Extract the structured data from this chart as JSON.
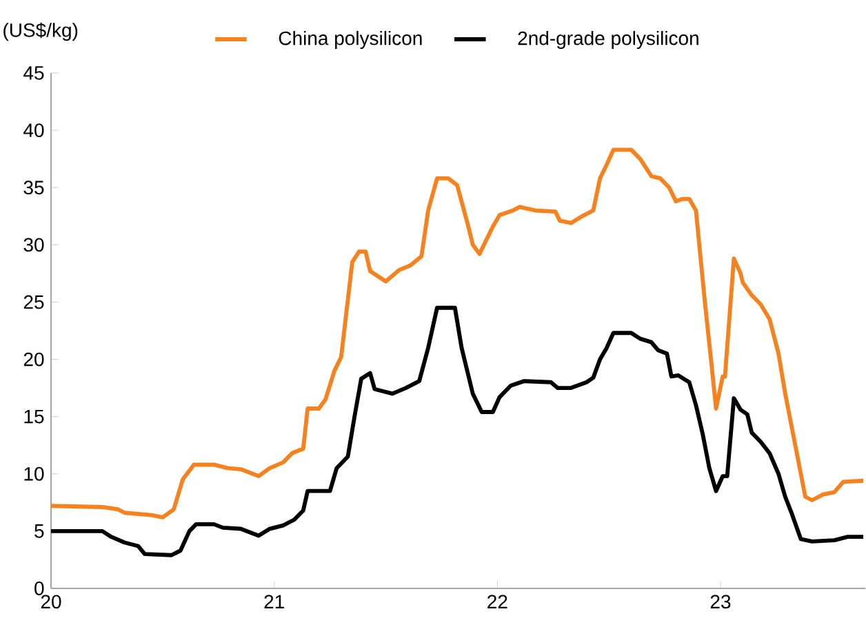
{
  "chart_data": {
    "type": "line",
    "ylabel": "(US$/kg)",
    "legend": "top",
    "xlim": [
      20,
      23.65
    ],
    "xticks": [
      20,
      21,
      22,
      23
    ],
    "ylim": [
      0,
      45
    ],
    "yticks": [
      0,
      5,
      10,
      15,
      20,
      25,
      30,
      35,
      40,
      45
    ],
    "series": [
      {
        "name": "China polysilicon",
        "color": "#f5821f",
        "x": [
          20.0,
          20.23,
          20.3,
          20.33,
          20.45,
          20.5,
          20.55,
          20.59,
          20.64,
          20.73,
          20.79,
          20.85,
          20.93,
          20.98,
          21.04,
          21.08,
          21.13,
          21.15,
          21.2,
          21.23,
          21.27,
          21.3,
          21.35,
          21.38,
          21.41,
          21.43,
          21.5,
          21.56,
          21.61,
          21.66,
          21.69,
          21.73,
          21.78,
          21.82,
          21.87,
          21.89,
          21.92,
          21.98,
          22.01,
          22.07,
          22.1,
          22.17,
          22.26,
          22.28,
          22.33,
          22.38,
          22.43,
          22.46,
          22.49,
          22.52,
          22.6,
          22.64,
          22.69,
          22.73,
          22.77,
          22.8,
          22.83,
          22.86,
          22.89,
          22.93,
          22.96,
          22.98,
          23.01,
          23.02,
          23.06,
          23.09,
          23.1,
          23.14,
          23.18,
          23.22,
          23.26,
          23.29,
          23.34,
          23.38,
          23.41,
          23.46,
          23.51,
          23.55,
          23.64
        ],
        "values": [
          7.2,
          7.1,
          6.9,
          6.6,
          6.4,
          6.2,
          6.9,
          9.5,
          10.8,
          10.8,
          10.5,
          10.4,
          9.8,
          10.5,
          11.0,
          11.8,
          12.2,
          15.7,
          15.7,
          16.5,
          19.0,
          20.2,
          28.5,
          29.4,
          29.4,
          27.7,
          26.8,
          27.8,
          28.2,
          29.0,
          33.0,
          35.8,
          35.8,
          35.2,
          31.6,
          30.0,
          29.2,
          31.6,
          32.6,
          33.0,
          33.3,
          33.0,
          32.9,
          32.1,
          31.9,
          32.5,
          33.0,
          35.8,
          37.0,
          38.3,
          38.3,
          37.5,
          36.0,
          35.8,
          35.0,
          33.8,
          34.0,
          34.0,
          33.0,
          25.0,
          19.5,
          15.7,
          18.5,
          18.5,
          28.8,
          27.5,
          26.7,
          25.6,
          24.8,
          23.5,
          20.5,
          17.0,
          12.0,
          8.0,
          7.7,
          8.2,
          8.4,
          9.3,
          9.4
        ]
      },
      {
        "name": "2nd-grade polysilicon",
        "color": "#000000",
        "x": [
          20.0,
          20.23,
          20.27,
          20.33,
          20.39,
          20.42,
          20.54,
          20.58,
          20.62,
          20.65,
          20.73,
          20.77,
          20.85,
          20.93,
          20.98,
          21.04,
          21.09,
          21.13,
          21.15,
          21.25,
          21.28,
          21.33,
          21.36,
          21.39,
          21.43,
          21.45,
          21.53,
          21.59,
          21.65,
          21.69,
          21.73,
          21.81,
          21.84,
          21.89,
          21.93,
          21.98,
          22.01,
          22.06,
          22.12,
          22.24,
          22.27,
          22.33,
          22.4,
          22.43,
          22.46,
          22.49,
          22.52,
          22.6,
          22.64,
          22.69,
          22.72,
          22.76,
          22.78,
          22.81,
          22.86,
          22.89,
          22.92,
          22.95,
          22.98,
          23.01,
          23.03,
          23.06,
          23.09,
          23.12,
          23.14,
          23.18,
          23.22,
          23.26,
          23.29,
          23.32,
          23.36,
          23.41,
          23.51,
          23.57,
          23.64
        ],
        "values": [
          5.0,
          5.0,
          4.5,
          4.0,
          3.7,
          3.0,
          2.9,
          3.3,
          5.0,
          5.6,
          5.6,
          5.3,
          5.2,
          4.6,
          5.2,
          5.5,
          6.0,
          6.8,
          8.5,
          8.5,
          10.5,
          11.5,
          15.0,
          18.3,
          18.8,
          17.4,
          17.0,
          17.5,
          18.1,
          21.0,
          24.5,
          24.5,
          21.0,
          17.0,
          15.4,
          15.4,
          16.7,
          17.7,
          18.1,
          18.0,
          17.5,
          17.5,
          18.0,
          18.4,
          20.0,
          21.0,
          22.3,
          22.3,
          21.8,
          21.5,
          20.8,
          20.5,
          18.5,
          18.6,
          18.0,
          16.0,
          13.5,
          10.5,
          8.5,
          9.8,
          9.8,
          16.6,
          15.6,
          15.2,
          13.6,
          12.8,
          11.8,
          10.0,
          8.0,
          6.5,
          4.3,
          4.1,
          4.2,
          4.5,
          4.5
        ]
      }
    ]
  }
}
